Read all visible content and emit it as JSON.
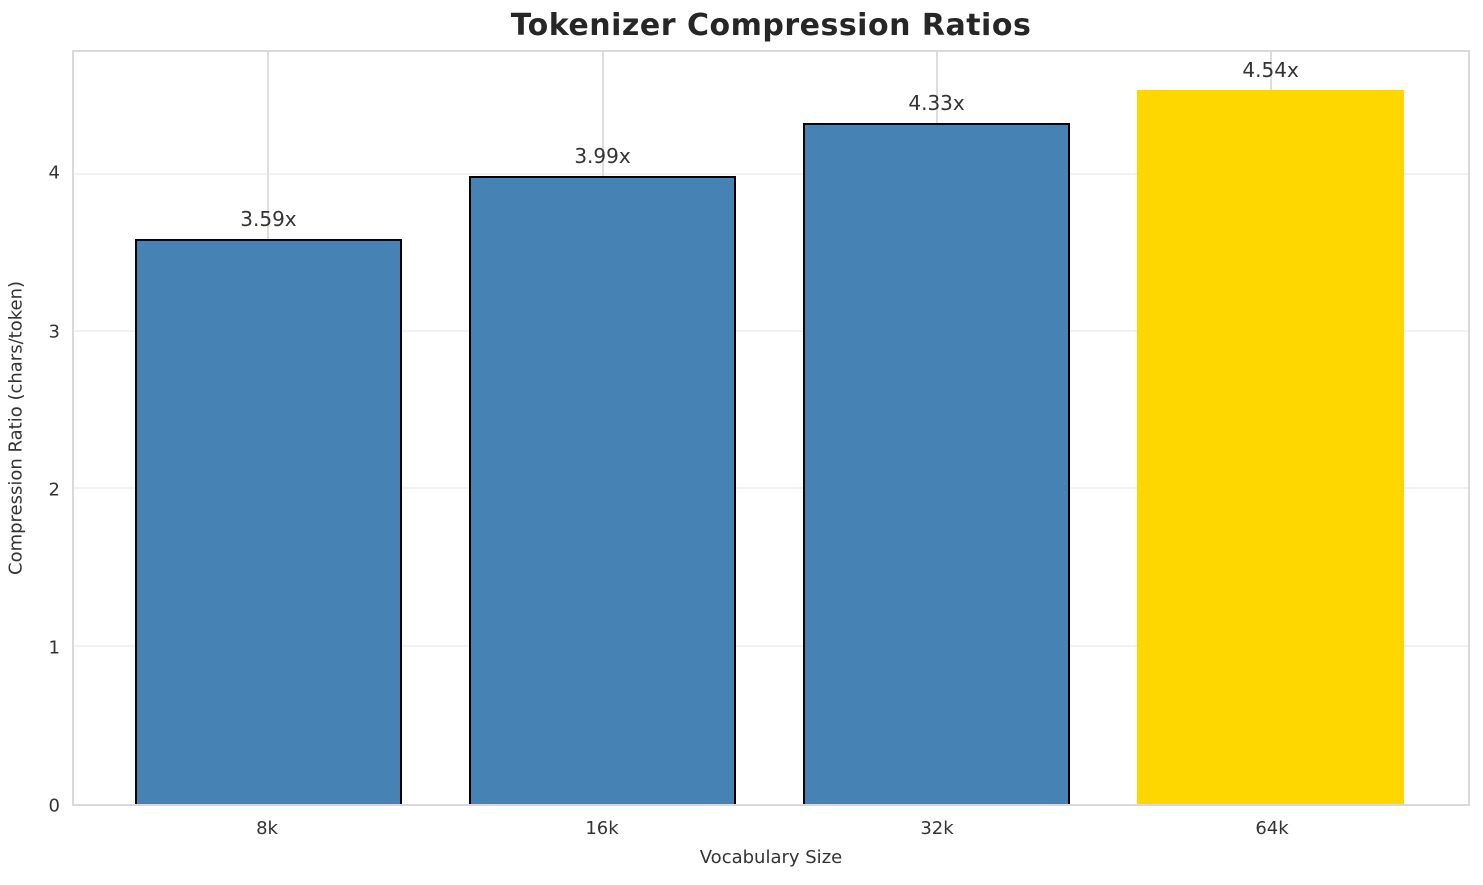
{
  "chart_data": {
    "type": "bar",
    "title": "Tokenizer Compression Ratios",
    "xlabel": "Vocabulary Size",
    "ylabel": "Compression Ratio (chars/token)",
    "categories": [
      "8k",
      "16k",
      "32k",
      "64k"
    ],
    "values": [
      3.59,
      3.99,
      4.33,
      4.54
    ],
    "bar_labels": [
      "3.59x",
      "3.99x",
      "4.33x",
      "4.54x"
    ],
    "yticks": [
      0,
      1,
      2,
      3,
      4
    ],
    "ylim": [
      0,
      4.78
    ],
    "grid": true,
    "legend": "none",
    "bar_colors": [
      "#4682B4",
      "#4682B4",
      "#4682B4",
      "#FFD700"
    ],
    "bar_edge_colors": [
      "#000000",
      "#000000",
      "#000000",
      "none"
    ],
    "highlight_index": 3
  },
  "colors": {
    "steel_blue": "#4682B4",
    "gold": "#FFD700",
    "text": "#333333",
    "title_text": "#262626",
    "spine": "#d9d9d9",
    "grid_vertical": "#dedede",
    "grid_horizontal": "#f2f2f2",
    "background": "#ffffff"
  }
}
